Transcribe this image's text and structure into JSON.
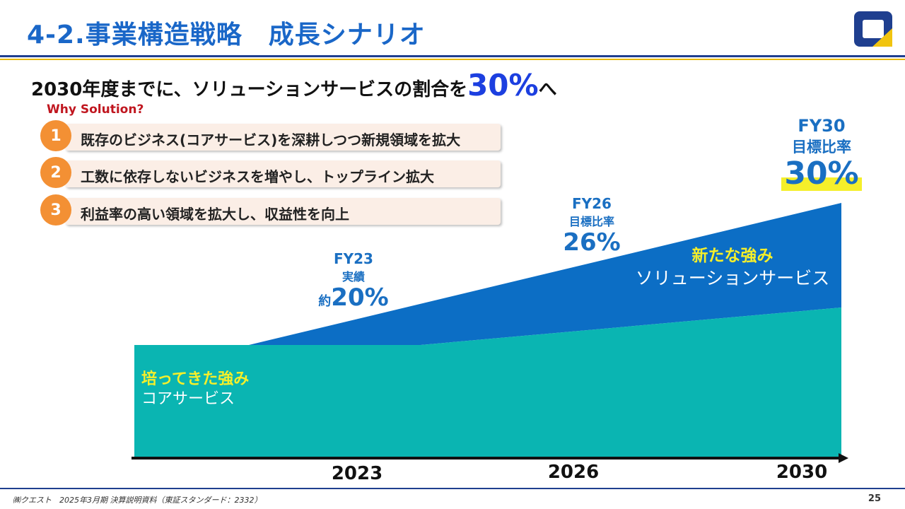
{
  "title": "4-2.事業構造戦略　成長シナリオ",
  "headline": {
    "pre": "2030年度までに、ソリューションサービスの割合を",
    "accent": "30%",
    "post": "へ"
  },
  "why_heading": "Why Solution?",
  "reasons": [
    {
      "num": "1",
      "text": "既存のビジネス(コアサービス)を深耕しつつ新規領域を拡大"
    },
    {
      "num": "2",
      "text": "工数に依存しないビジネスを増やし、トップライン拡大"
    },
    {
      "num": "3",
      "text": "利益率の高い領域を拡大し、収益性を向上"
    }
  ],
  "chart_data": {
    "type": "area",
    "x": [
      "2023",
      "2026",
      "2030"
    ],
    "series": [
      {
        "name": "コアサービス",
        "label_em": "培ってきた強み",
        "label": "コアサービス",
        "color": "#0ab5b2"
      },
      {
        "name": "ソリューションサービス",
        "label_em": "新たな強み",
        "label": "ソリューションサービス",
        "color": "#0c6ec5"
      }
    ],
    "annotations": [
      {
        "fy": "FY23",
        "sub": "実績",
        "prefix": "約",
        "value": "20%"
      },
      {
        "fy": "FY26",
        "sub": "目標比率",
        "prefix": "",
        "value": "26%"
      },
      {
        "fy": "FY30",
        "sub": "目標比率",
        "prefix": "",
        "value": "30%"
      }
    ],
    "solution_share": [
      20,
      26,
      30
    ]
  },
  "footer": "㈱クエスト　2025年3月期 決算説明資料（東証スタンダード：2332）",
  "page": "25",
  "colors": {
    "title": "#1a67c8",
    "accent": "#1c3fe0",
    "core": "#0ab5b2",
    "solution": "#0c6ec5",
    "badge": "#f39034",
    "highlight_text": "#f5ef2a"
  }
}
